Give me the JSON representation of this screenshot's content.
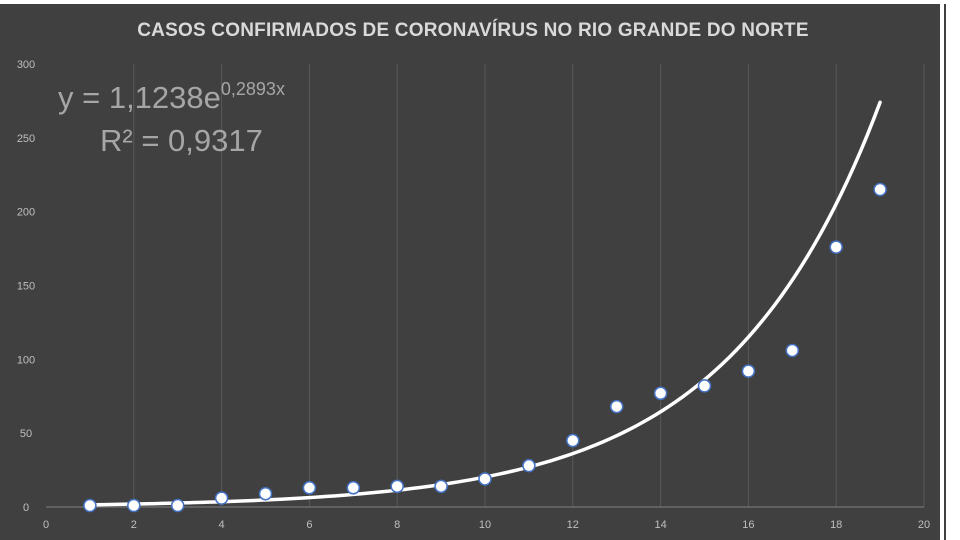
{
  "chart_data": {
    "type": "scatter",
    "title": "CASOS CONFIRMADOS DE CORONAVÍRUS NO RIO GRANDE DO NORTE",
    "xlim": [
      0,
      20
    ],
    "ylim": [
      0,
      300
    ],
    "x_ticks": [
      0,
      2,
      4,
      6,
      8,
      10,
      12,
      14,
      16,
      18,
      20
    ],
    "y_ticks": [
      0,
      50,
      100,
      150,
      200,
      250,
      300
    ],
    "grid": "vertical",
    "x": [
      1,
      2,
      3,
      4,
      5,
      6,
      7,
      8,
      9,
      10,
      11,
      12,
      13,
      14,
      15,
      16,
      17,
      18,
      19
    ],
    "values": [
      1,
      1,
      1,
      6,
      9,
      13,
      13,
      14,
      14,
      19,
      28,
      45,
      68,
      77,
      82,
      92,
      106,
      176,
      215
    ],
    "trendline": {
      "type": "exponential",
      "a": 1.1238,
      "b": 0.2893,
      "x_range": [
        1,
        19
      ],
      "equation_main": "y = 1,1238e",
      "equation_exponent": "0,2893x",
      "r_squared_label": "R² = 0,9317"
    },
    "colors": {
      "background": "#404040",
      "points": "#ffffff",
      "point_outline": "#4472c4",
      "trendline": "#ffffff",
      "grid": "#595959",
      "text": "#bfbfbf"
    }
  }
}
